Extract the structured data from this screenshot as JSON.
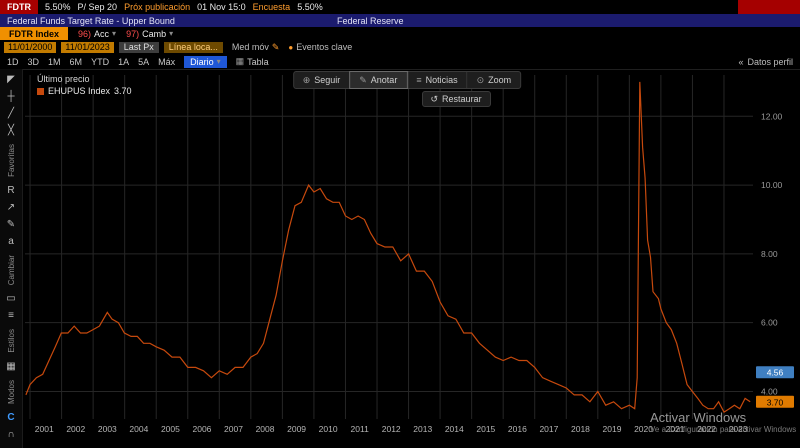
{
  "topbar": {
    "ticker": "FDTR",
    "last": "5.50%",
    "period": "P/ Sep 20",
    "next_label": "Próx publicación",
    "next_value": "01 Nov 15:0",
    "survey_label": "Encuesta",
    "survey_value": "5.50%"
  },
  "titlebar": {
    "description": "Federal Funds Target Rate - Upper Bound",
    "source": "Federal Reserve"
  },
  "menubar": {
    "security_tab": "FDTR Index",
    "actions_num": "96)",
    "actions_label": "Acc",
    "change_num": "97)",
    "change_label": "Camb"
  },
  "toolbar": {
    "date_from": "11/01/2000",
    "date_to": "11/01/2023",
    "field": "Last Px",
    "study": "Línea loca...",
    "mov_avg": "Med móv",
    "key_events": "Eventos clave"
  },
  "period_row": {
    "tabs": [
      "1D",
      "3D",
      "1M",
      "6M",
      "YTD",
      "1A",
      "5A",
      "Máx"
    ],
    "frequency": "Diario",
    "table": "Tabla",
    "right_panel": "Datos perfil"
  },
  "chart_toolbar": {
    "items": [
      {
        "label": "Seguir",
        "icon": "crosshair",
        "active": false
      },
      {
        "label": "Anotar",
        "icon": "pencil",
        "active": true
      },
      {
        "label": "Noticias",
        "icon": "news",
        "active": false
      },
      {
        "label": "Zoom",
        "icon": "magnifier",
        "active": false
      }
    ],
    "restore": "Restaurar"
  },
  "legend": {
    "title": "Último precio",
    "series_label": "EHUPUS Index",
    "series_value": "3.70"
  },
  "badges": [
    {
      "value": 4.56,
      "text": "4.56",
      "color": "#3f7fc1",
      "text_color": "#ffffff",
      "name": "track-value-badge"
    },
    {
      "value": 3.7,
      "text": "3.70",
      "color": "#e07b00",
      "text_color": "#000000",
      "name": "last-price-badge"
    }
  ],
  "watermark": {
    "line1": "Activar Windows",
    "line2": "Ve a Configuración para activar Windows."
  },
  "sidebar": {
    "items": [
      {
        "glyph": "◤",
        "name": "cursor-tool"
      },
      {
        "glyph": "┼",
        "name": "crosshair-tool"
      },
      {
        "glyph": "╱",
        "name": "trendline-tool"
      },
      {
        "glyph": "╳",
        "name": "multi-line-tool"
      },
      {
        "section": "Favoritas"
      },
      {
        "glyph": "R",
        "name": "regression-tool"
      },
      {
        "glyph": "↗",
        "name": "arrow-tool"
      },
      {
        "glyph": "✎",
        "name": "pencil-tool"
      },
      {
        "glyph": "a",
        "name": "text-tool"
      },
      {
        "section": "Cambiar"
      },
      {
        "glyph": "▭",
        "name": "shape-tool"
      },
      {
        "glyph": "≡",
        "name": "lines-style-tool"
      },
      {
        "section": "Estilos"
      },
      {
        "glyph": "▦",
        "name": "grid-style-tool"
      },
      {
        "section": "Modos"
      },
      {
        "glyph": "C",
        "name": "news-mode-tool",
        "accent": true
      },
      {
        "glyph": "∩",
        "name": "magnet-tool"
      }
    ]
  },
  "chart_data": {
    "type": "line",
    "title": "EHUPUS Index (Último precio)",
    "x_ticks": [
      2001,
      2002,
      2003,
      2004,
      2005,
      2006,
      2007,
      2008,
      2009,
      2010,
      2011,
      2012,
      2013,
      2014,
      2015,
      2016,
      2017,
      2018,
      2019,
      2020,
      2021,
      2022,
      2023
    ],
    "y_ticks": [
      4,
      6,
      8,
      10,
      12
    ],
    "y_tick_labels": [
      "4.00",
      "6.00",
      "8.00",
      "10.00",
      "12.00"
    ],
    "xlim": [
      2000.84,
      2023.92
    ],
    "ylim": [
      3.2,
      13.2
    ],
    "grid": true,
    "legend_position": "top-left",
    "series": [
      {
        "name": "EHUPUS Index",
        "color": "#c6490d",
        "last_value": 3.7,
        "points": [
          [
            2000.87,
            3.9
          ],
          [
            2001.0,
            4.2
          ],
          [
            2001.2,
            4.4
          ],
          [
            2001.4,
            4.5
          ],
          [
            2001.6,
            4.9
          ],
          [
            2001.8,
            5.3
          ],
          [
            2001.99,
            5.7
          ],
          [
            2002.2,
            5.7
          ],
          [
            2002.4,
            5.9
          ],
          [
            2002.6,
            5.7
          ],
          [
            2002.8,
            5.7
          ],
          [
            2003.0,
            5.8
          ],
          [
            2003.2,
            5.9
          ],
          [
            2003.45,
            6.3
          ],
          [
            2003.6,
            6.1
          ],
          [
            2003.8,
            6.0
          ],
          [
            2003.99,
            5.7
          ],
          [
            2004.2,
            5.6
          ],
          [
            2004.4,
            5.6
          ],
          [
            2004.6,
            5.4
          ],
          [
            2004.8,
            5.4
          ],
          [
            2005.0,
            5.3
          ],
          [
            2005.25,
            5.2
          ],
          [
            2005.5,
            5.0
          ],
          [
            2005.75,
            5.0
          ],
          [
            2006.0,
            4.7
          ],
          [
            2006.25,
            4.7
          ],
          [
            2006.5,
            4.6
          ],
          [
            2006.75,
            4.4
          ],
          [
            2007.0,
            4.6
          ],
          [
            2007.25,
            4.5
          ],
          [
            2007.5,
            4.7
          ],
          [
            2007.75,
            4.7
          ],
          [
            2008.0,
            5.0
          ],
          [
            2008.2,
            5.1
          ],
          [
            2008.4,
            5.4
          ],
          [
            2008.6,
            6.1
          ],
          [
            2008.8,
            6.8
          ],
          [
            2009.0,
            7.8
          ],
          [
            2009.2,
            8.7
          ],
          [
            2009.4,
            9.4
          ],
          [
            2009.6,
            9.5
          ],
          [
            2009.83,
            10.0
          ],
          [
            2010.0,
            9.8
          ],
          [
            2010.2,
            9.9
          ],
          [
            2010.4,
            9.6
          ],
          [
            2010.6,
            9.5
          ],
          [
            2010.8,
            9.5
          ],
          [
            2011.0,
            9.1
          ],
          [
            2011.2,
            9.0
          ],
          [
            2011.4,
            9.1
          ],
          [
            2011.6,
            9.0
          ],
          [
            2011.8,
            8.6
          ],
          [
            2012.0,
            8.3
          ],
          [
            2012.25,
            8.2
          ],
          [
            2012.5,
            8.2
          ],
          [
            2012.75,
            7.8
          ],
          [
            2013.0,
            8.0
          ],
          [
            2013.25,
            7.5
          ],
          [
            2013.5,
            7.5
          ],
          [
            2013.75,
            7.2
          ],
          [
            2014.0,
            6.6
          ],
          [
            2014.25,
            6.2
          ],
          [
            2014.5,
            6.1
          ],
          [
            2014.75,
            5.7
          ],
          [
            2015.0,
            5.7
          ],
          [
            2015.25,
            5.4
          ],
          [
            2015.5,
            5.2
          ],
          [
            2015.75,
            5.0
          ],
          [
            2016.0,
            4.9
          ],
          [
            2016.25,
            5.0
          ],
          [
            2016.5,
            4.9
          ],
          [
            2016.75,
            4.9
          ],
          [
            2017.0,
            4.7
          ],
          [
            2017.25,
            4.4
          ],
          [
            2017.5,
            4.3
          ],
          [
            2017.75,
            4.2
          ],
          [
            2018.0,
            4.1
          ],
          [
            2018.25,
            3.9
          ],
          [
            2018.5,
            3.9
          ],
          [
            2018.75,
            3.7
          ],
          [
            2019.0,
            4.0
          ],
          [
            2019.25,
            3.6
          ],
          [
            2019.5,
            3.7
          ],
          [
            2019.75,
            3.5
          ],
          [
            2020.0,
            3.6
          ],
          [
            2020.17,
            3.5
          ],
          [
            2020.25,
            4.4
          ],
          [
            2020.33,
            13.0
          ],
          [
            2020.42,
            11.1
          ],
          [
            2020.5,
            10.2
          ],
          [
            2020.58,
            8.4
          ],
          [
            2020.67,
            7.9
          ],
          [
            2020.75,
            6.9
          ],
          [
            2020.92,
            6.7
          ],
          [
            2021.0,
            6.4
          ],
          [
            2021.17,
            6.0
          ],
          [
            2021.33,
            5.8
          ],
          [
            2021.5,
            5.4
          ],
          [
            2021.67,
            4.8
          ],
          [
            2021.83,
            4.2
          ],
          [
            2022.0,
            4.0
          ],
          [
            2022.17,
            3.8
          ],
          [
            2022.33,
            3.6
          ],
          [
            2022.5,
            3.5
          ],
          [
            2022.67,
            3.5
          ],
          [
            2022.83,
            3.7
          ],
          [
            2023.0,
            3.4
          ],
          [
            2023.17,
            3.5
          ],
          [
            2023.33,
            3.6
          ],
          [
            2023.5,
            3.5
          ],
          [
            2023.67,
            3.8
          ],
          [
            2023.83,
            3.7
          ]
        ]
      }
    ]
  }
}
